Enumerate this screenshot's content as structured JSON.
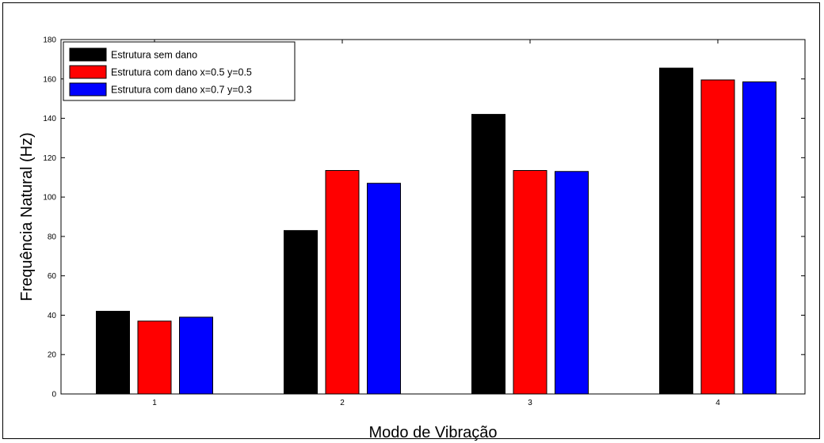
{
  "chart_data": {
    "type": "bar",
    "categories": [
      "1",
      "2",
      "3",
      "4"
    ],
    "series": [
      {
        "name": "Estrutura sem dano",
        "color": "#000000",
        "values": [
          42,
          83,
          142,
          165.5
        ]
      },
      {
        "name": "Estrutura com dano x=0.5 y=0.5",
        "color": "#ff0000",
        "values": [
          37,
          113.5,
          113.5,
          159.5
        ]
      },
      {
        "name": "Estrutura com dano x=0.7 y=0.3",
        "color": "#0000ff",
        "values": [
          39,
          107,
          113,
          158.5
        ]
      }
    ],
    "title": "",
    "xlabel": "Modo de Vibração",
    "ylabel": "Frequência Natural (Hz)",
    "ylim": [
      0,
      180
    ],
    "yticks": [
      "0",
      "20",
      "40",
      "60",
      "80",
      "100",
      "120",
      "140",
      "160",
      "180"
    ],
    "grid": false,
    "legend": "top-left"
  }
}
